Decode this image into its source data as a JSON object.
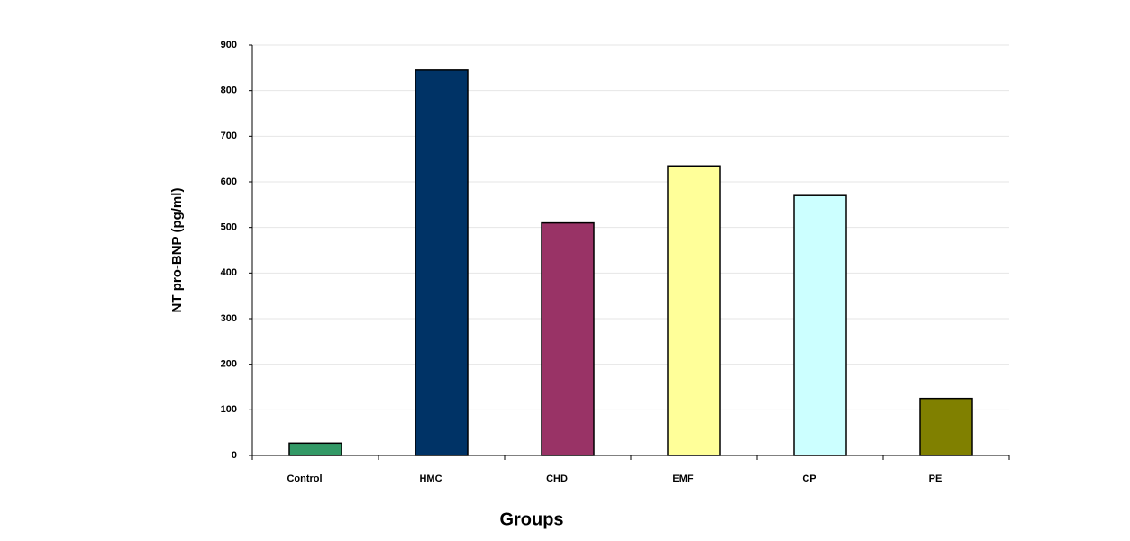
{
  "chart_data": {
    "type": "bar",
    "categories": [
      "Control",
      "HMC",
      "CHD",
      "EMF",
      "CP",
      "PE"
    ],
    "values": [
      27,
      845,
      510,
      635,
      570,
      125
    ],
    "colors": [
      "#339966",
      "#003366",
      "#993366",
      "#ffff99",
      "#ccffff",
      "#808000"
    ],
    "x_label": "Groups",
    "y_label": "NT pro-BNP (pg/ml)",
    "ylim": [
      0,
      900
    ],
    "yticks": [
      0,
      100,
      200,
      300,
      400,
      500,
      600,
      700,
      800,
      900
    ],
    "grid": true
  }
}
